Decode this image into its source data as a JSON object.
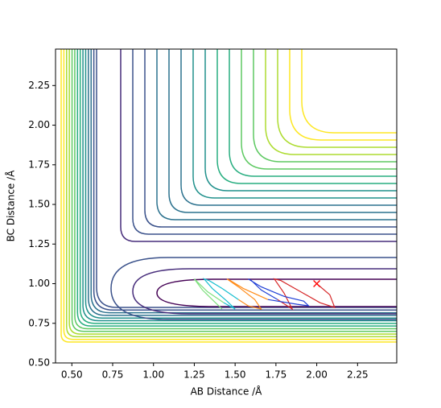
{
  "chart_data": {
    "type": "contour",
    "xlabel": "AB Distance /Å",
    "ylabel": "BC Distance /Å",
    "xlim": [
      0.4,
      2.49
    ],
    "ylim": [
      0.5,
      2.48
    ],
    "xticks": [
      {
        "value": 0.5,
        "label": "0.50"
      },
      {
        "value": 0.75,
        "label": "0.75"
      },
      {
        "value": 1.0,
        "label": "1.00"
      },
      {
        "value": 1.25,
        "label": "1.25"
      },
      {
        "value": 1.5,
        "label": "1.50"
      },
      {
        "value": 1.75,
        "label": "1.75"
      },
      {
        "value": 2.0,
        "label": "2.00"
      },
      {
        "value": 2.25,
        "label": "2.25"
      }
    ],
    "yticks": [
      {
        "value": 0.5,
        "label": "0.50"
      },
      {
        "value": 0.75,
        "label": "0.75"
      },
      {
        "value": 1.0,
        "label": "1.00"
      },
      {
        "value": 1.25,
        "label": "1.25"
      },
      {
        "value": 1.5,
        "label": "1.50"
      },
      {
        "value": 1.75,
        "label": "1.75"
      },
      {
        "value": 2.0,
        "label": "2.00"
      },
      {
        "value": 2.25,
        "label": "2.25"
      }
    ],
    "series": [
      {
        "color": "#d62728",
        "x": [
          2.0,
          2.08,
          2.11,
          2.02,
          1.9,
          1.78,
          1.74,
          1.8,
          1.85,
          1.76
        ],
        "y": [
          1.0,
          0.93,
          0.85,
          0.88,
          0.95,
          1.02,
          1.03,
          0.94,
          0.84,
          0.9
        ]
      },
      {
        "color": "#1f3fd6",
        "x": [
          1.76,
          1.66,
          1.6,
          1.58,
          1.66,
          1.8,
          1.92,
          1.95,
          1.88,
          1.7
        ],
        "y": [
          0.9,
          0.96,
          1.02,
          1.03,
          0.98,
          0.92,
          0.89,
          0.86,
          0.87,
          0.9
        ]
      },
      {
        "color": "#ff8c1a",
        "x": [
          1.7,
          1.55,
          1.47,
          1.45,
          1.52,
          1.62,
          1.66,
          1.58,
          1.52
        ],
        "y": [
          0.9,
          0.97,
          1.02,
          1.03,
          0.98,
          0.9,
          0.84,
          0.86,
          0.9
        ]
      },
      {
        "color": "#17becf",
        "x": [
          1.52,
          1.42,
          1.34,
          1.31,
          1.36,
          1.45,
          1.5,
          1.43
        ],
        "y": [
          0.9,
          0.97,
          1.02,
          1.03,
          0.97,
          0.89,
          0.84,
          0.88
        ]
      },
      {
        "color": "#7fe07f",
        "x": [
          1.43,
          1.33,
          1.27,
          1.25,
          1.3,
          1.38,
          1.42
        ],
        "y": [
          0.88,
          0.95,
          1.01,
          1.03,
          0.96,
          0.88,
          0.84
        ]
      }
    ],
    "marker": {
      "x": 2.0,
      "y": 1.0,
      "color": "#ff0000"
    }
  }
}
